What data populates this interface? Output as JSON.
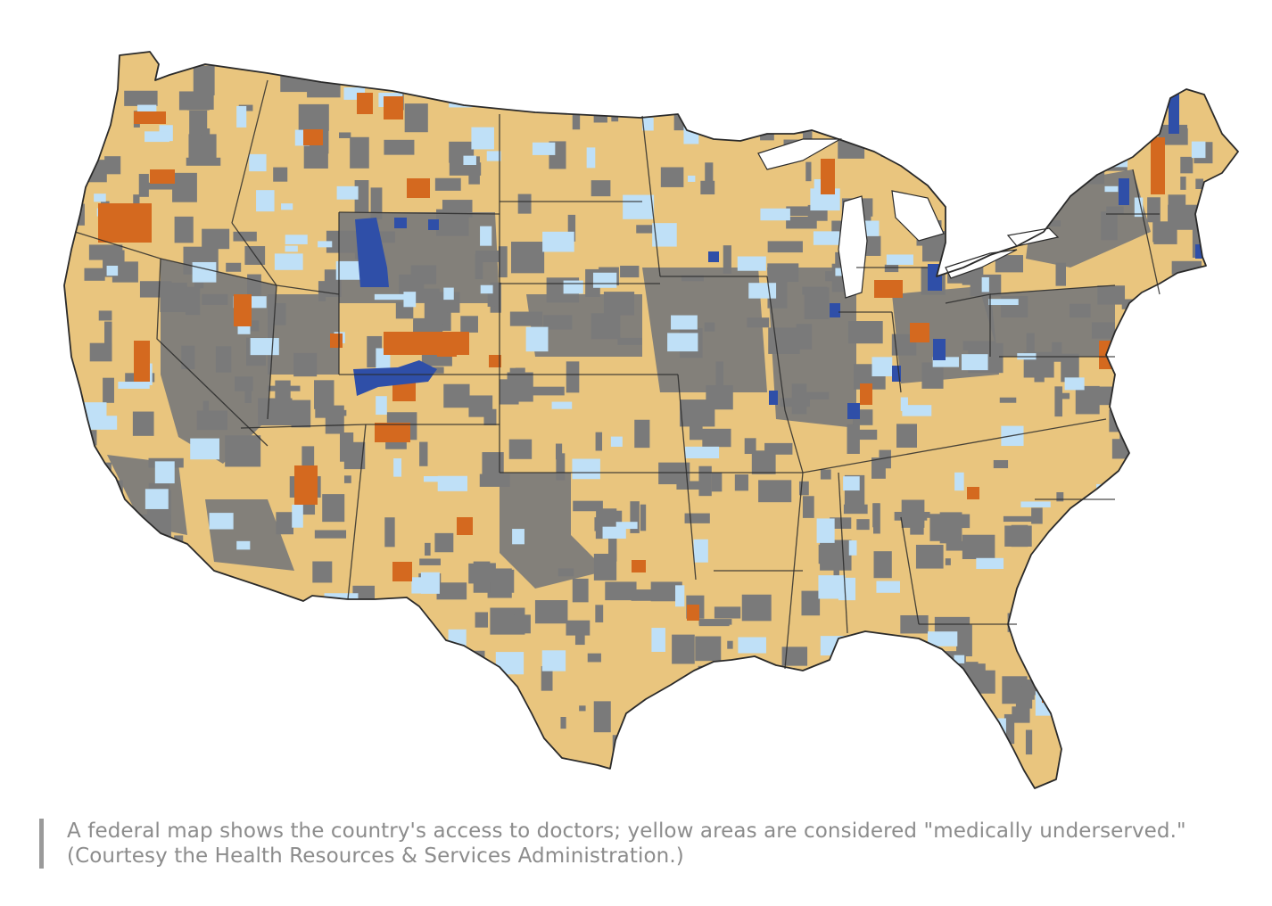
{
  "map": {
    "colors": {
      "underserved": "#e9c57e",
      "not_designated": "#7a7a7a",
      "light_blue": "#bfe0f7",
      "orange": "#d4691f",
      "dark_blue": "#2f4fa8",
      "border": "#2a2a2a",
      "water": "#ffffff"
    },
    "icon": "us-choropleth-map"
  },
  "caption": {
    "text": "A federal map shows the country's access to doctors; yellow areas are considered \"medically underserved.\" (Courtesy the Health Resources & Services Administration.)"
  }
}
